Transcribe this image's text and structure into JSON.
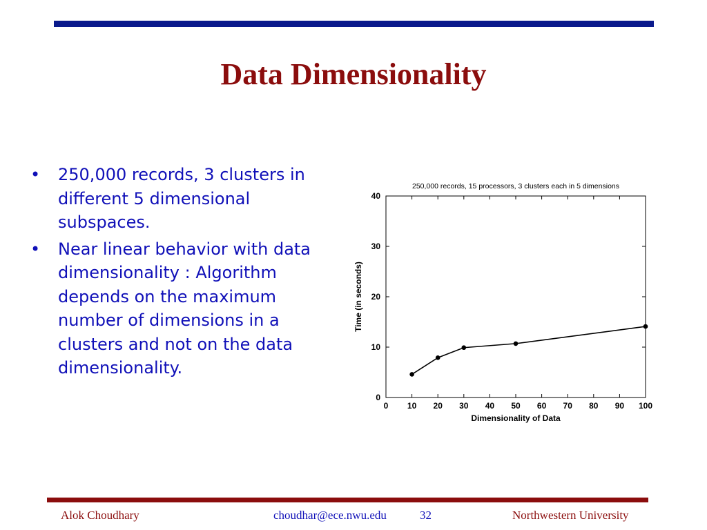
{
  "slide": {
    "title": "Data Dimensionality",
    "bullets": [
      "250,000 records, 3 clusters in different 5 dimensional subspaces.",
      "Near linear behavior with data dimensionality : Algorithm depends on the maximum number of dimensions in a clusters and not on the data dimensionality."
    ],
    "bullet_symbol": "•"
  },
  "footer": {
    "author": "Alok Choudhary",
    "email": "choudhar@ece.nwu.edu",
    "page": "32",
    "institution": "Northwestern University"
  },
  "colors": {
    "title": "#8b0d0d",
    "bullet_text": "#1010b8",
    "top_rule": "#0a1a8c",
    "bottom_rule": "#8b0d0d"
  },
  "chart_data": {
    "type": "line",
    "title": "250,000 records, 15 processors, 3 clusters each in 5 dimensions",
    "xlabel": "Dimensionality of Data",
    "ylabel": "Time (in seconds)",
    "xlim": [
      0,
      100
    ],
    "ylim": [
      0,
      40
    ],
    "xticks": [
      0,
      10,
      20,
      30,
      40,
      50,
      60,
      70,
      80,
      90,
      100
    ],
    "yticks": [
      0,
      10,
      20,
      30,
      40
    ],
    "grid": false,
    "series": [
      {
        "x": [
          10,
          20,
          30,
          50,
          100
        ],
        "y": [
          4.6,
          7.9,
          9.9,
          10.7,
          14.1
        ]
      }
    ]
  }
}
